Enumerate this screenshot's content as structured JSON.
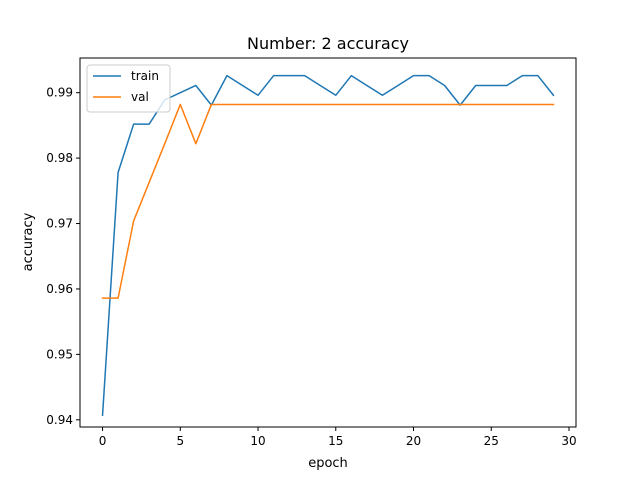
{
  "chart_data": {
    "type": "line",
    "title": "Number: 2 accuracy",
    "xlabel": "epoch",
    "ylabel": "accuracy",
    "xlim": [
      -1.45,
      30.45
    ],
    "ylim": [
      0.9389,
      0.9953
    ],
    "xticks": [
      0,
      5,
      10,
      15,
      20,
      25,
      30
    ],
    "yticks": [
      0.94,
      0.95,
      0.96,
      0.97,
      0.98,
      0.99
    ],
    "ytick_labels": [
      "0.94",
      "0.95",
      "0.96",
      "0.97",
      "0.98",
      "0.99"
    ],
    "grid": false,
    "legend_position": "upper-left",
    "x": [
      0,
      1,
      2,
      3,
      4,
      5,
      6,
      7,
      8,
      9,
      10,
      11,
      12,
      13,
      14,
      15,
      16,
      17,
      18,
      19,
      20,
      21,
      22,
      23,
      24,
      25,
      26,
      27,
      28,
      29
    ],
    "series": [
      {
        "name": "train",
        "color": "#1f77b4",
        "values": [
          0.9407,
          0.9778,
          0.9852,
          0.9852,
          0.9889,
          0.99,
          0.9911,
          0.9881,
          0.9926,
          0.9911,
          0.9896,
          0.9926,
          0.9926,
          0.9926,
          0.9911,
          0.9896,
          0.9926,
          0.9911,
          0.9896,
          0.9911,
          0.9926,
          0.9926,
          0.9911,
          0.9881,
          0.9911,
          0.9911,
          0.9911,
          0.9926,
          0.9926,
          0.9896
        ]
      },
      {
        "name": "val",
        "color": "#ff7f0e",
        "values": [
          0.9586,
          0.9586,
          0.9704,
          0.9763,
          0.9822,
          0.9882,
          0.9822,
          0.9882,
          0.9882,
          0.9882,
          0.9882,
          0.9882,
          0.9882,
          0.9882,
          0.9882,
          0.9882,
          0.9882,
          0.9882,
          0.9882,
          0.9882,
          0.9882,
          0.9882,
          0.9882,
          0.9882,
          0.9882,
          0.9882,
          0.9882,
          0.9882,
          0.9882,
          0.9882
        ]
      }
    ]
  }
}
